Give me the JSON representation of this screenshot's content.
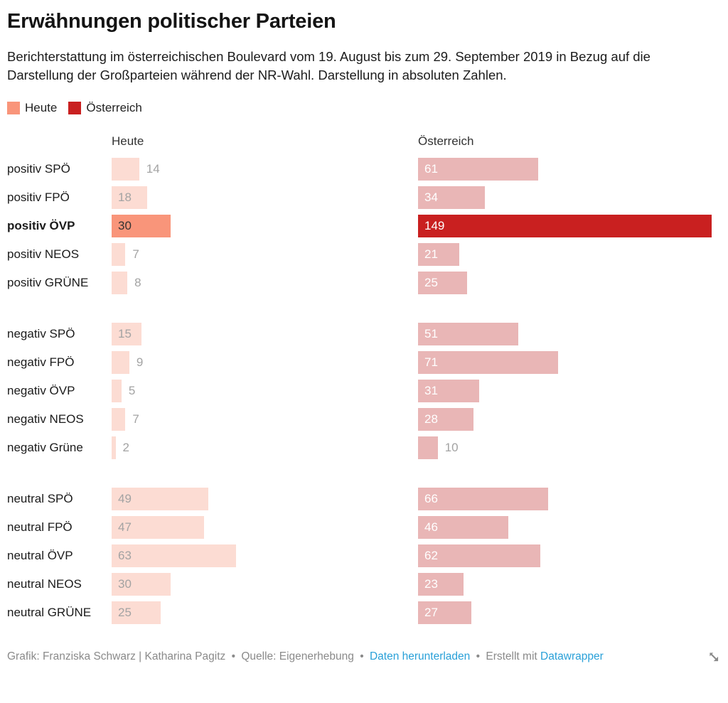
{
  "title": "Erwähnungen politischer Parteien",
  "subtitle": "Berichterstattung im österreichischen Boulevard vom 19. August bis zum 29. September 2019 in Bezug auf die Darstellung der Großparteien während der NR-Wahl. Darstellung in absoluten Zahlen.",
  "legend": {
    "items": [
      {
        "label": "Heute",
        "color": "#f9957a"
      },
      {
        "label": "Österreich",
        "color": "#c92020"
      }
    ]
  },
  "columns": {
    "heute": "Heute",
    "oesterreich": "Österreich"
  },
  "colors": {
    "heute_bar": "#fcdcd3",
    "heute_bar_highlight": "#f9957a",
    "oesterreich_bar": "#e9b6b6",
    "oesterreich_bar_highlight": "#c92020",
    "value_gray": "#a3a3a3",
    "value_on_highlight": "#333333",
    "value_white": "#ffffff",
    "link_blue": "#29a0d8"
  },
  "chart_data": {
    "type": "bar",
    "orientation": "horizontal",
    "title": "Erwähnungen politischer Parteien",
    "categories": [
      "positiv SPÖ",
      "positiv FPÖ",
      "positiv ÖVP",
      "positiv NEOS",
      "positiv GRÜNE",
      "negativ SPÖ",
      "negativ FPÖ",
      "negativ ÖVP",
      "negativ NEOS",
      "negativ Grüne",
      "neutral SPÖ",
      "neutral FPÖ",
      "neutral ÖVP",
      "neutral NEOS",
      "neutral GRÜNE"
    ],
    "series": [
      {
        "name": "Heute",
        "values": [
          14,
          18,
          30,
          7,
          8,
          15,
          9,
          5,
          7,
          2,
          49,
          47,
          63,
          30,
          25
        ]
      },
      {
        "name": "Österreich",
        "values": [
          61,
          34,
          149,
          21,
          25,
          51,
          71,
          31,
          28,
          10,
          66,
          46,
          62,
          23,
          27
        ]
      }
    ],
    "groups": [
      {
        "name": "positiv",
        "indices": [
          0,
          1,
          2,
          3,
          4
        ]
      },
      {
        "name": "negativ",
        "indices": [
          5,
          6,
          7,
          8,
          9
        ]
      },
      {
        "name": "neutral",
        "indices": [
          10,
          11,
          12,
          13,
          14
        ]
      }
    ],
    "highlight_index": 2,
    "highlight_category": "positiv ÖVP",
    "value_labels": true,
    "axis_shown": false,
    "legend_position": "top"
  },
  "footer": {
    "credit": "Grafik: Franziska Schwarz | Katharina Pagitz",
    "sep": "•",
    "source": "Quelle: Eigenerhebung",
    "download_link": "Daten herunterladen",
    "created_with": "Erstellt mit",
    "brand_link": "Datawrapper"
  }
}
